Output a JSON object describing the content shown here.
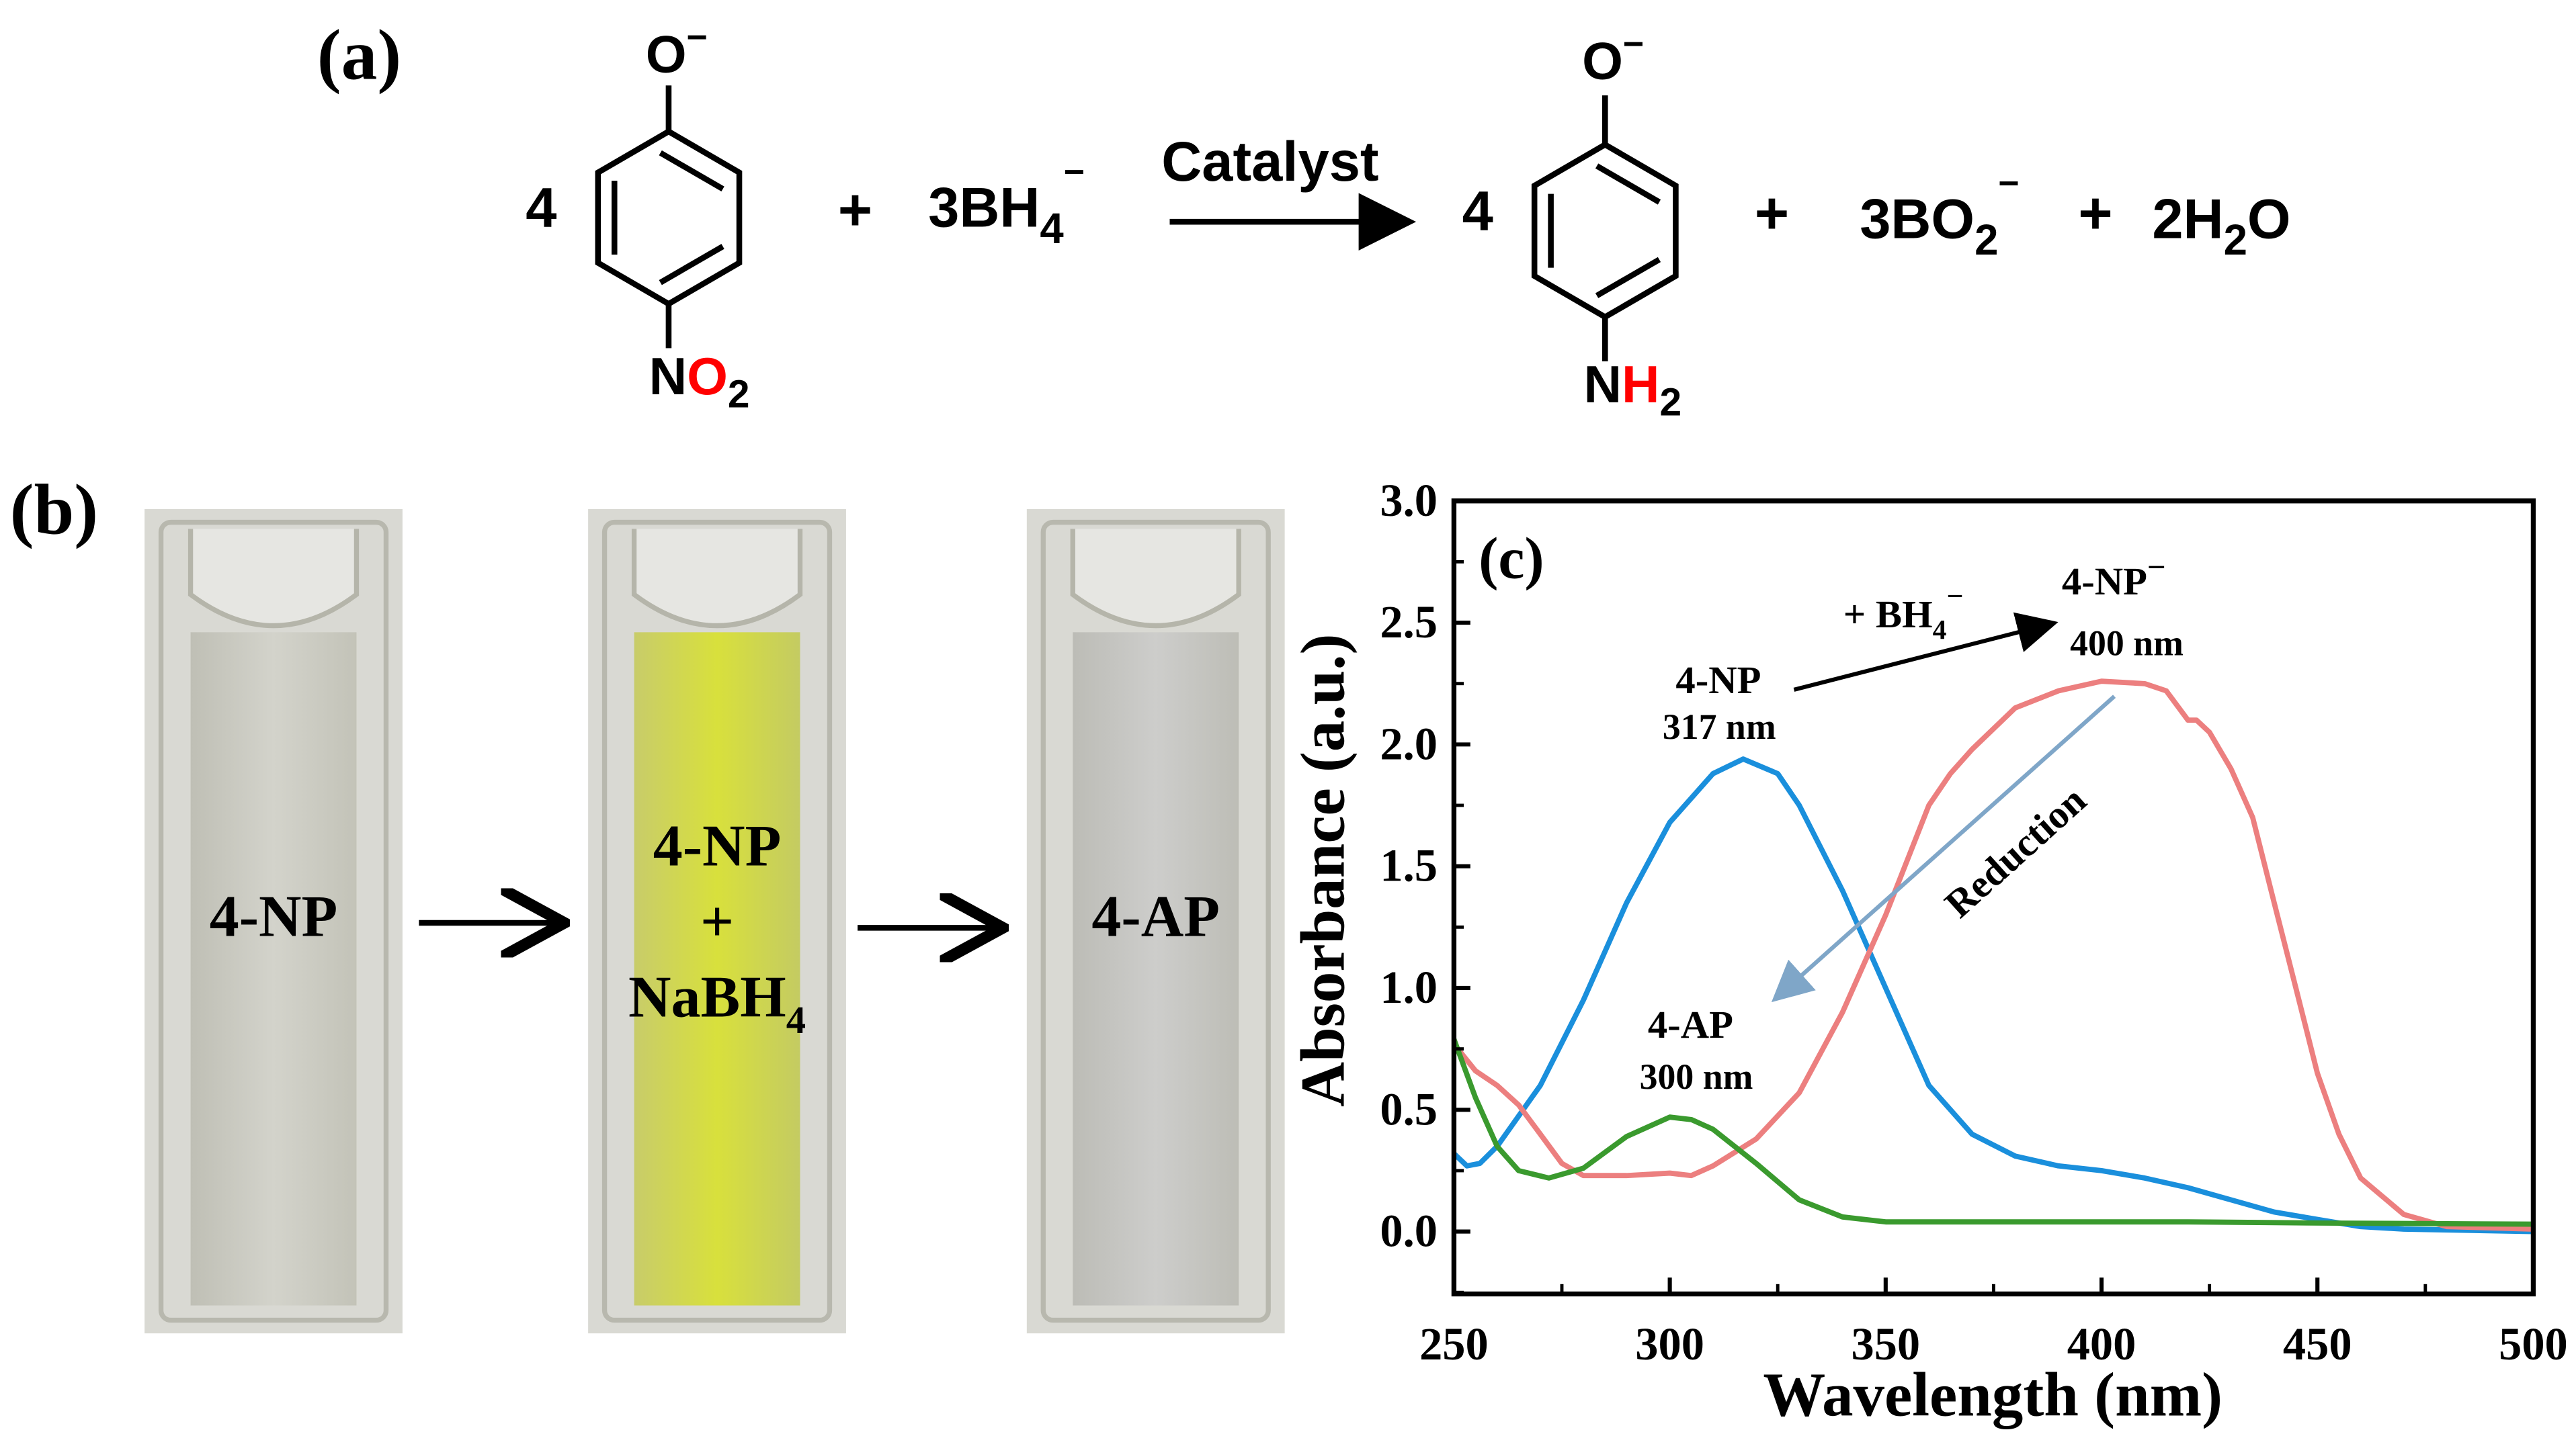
{
  "panel_a": {
    "label": "(a)",
    "coef_left": "4",
    "reactant_top": "O",
    "reactant_top_charge": "−",
    "reactant_bottom_n": "N",
    "reactant_bottom_o": "O",
    "reactant_bottom_sub": "2",
    "plus1": "+",
    "bh4_main": "3BH",
    "bh4_sub": "4",
    "bh4_charge": "−",
    "arrow_label": "Catalyst",
    "coef_right": "4",
    "product_top": "O",
    "product_top_charge": "−",
    "product_bottom_n": "N",
    "product_bottom_h": "H",
    "product_bottom_sub": "2",
    "plus2": "+",
    "bo2_main": "3BO",
    "bo2_sub": "2",
    "bo2_charge": "−",
    "plus3": "+",
    "h2o_a": "2H",
    "h2o_sub": "2",
    "h2o_b": "O",
    "highlight_color": "#ff0000"
  },
  "panel_b": {
    "label": "(b)",
    "cuvettes": [
      {
        "lines": [
          "4-NP"
        ],
        "liquid_color": "#c9c9bf"
      },
      {
        "lines": [
          "4-NP",
          "+",
          "NaBH"
        ],
        "sub": "4",
        "liquid_color": "#d4dc3a"
      },
      {
        "lines": [
          "4-AP"
        ],
        "liquid_color": "#c6c6c4"
      }
    ]
  },
  "chart_data": {
    "type": "line",
    "panel_label": "(c)",
    "xlabel": "Wavelength (nm)",
    "ylabel": "Absorbance (a.u.)",
    "xlim": [
      250,
      500
    ],
    "ylim": [
      -0.25,
      3.0
    ],
    "xticks": [
      250,
      300,
      350,
      400,
      450,
      500
    ],
    "xtick_labels": [
      "250",
      "300",
      "350",
      "400",
      "450",
      "500"
    ],
    "yticks": [
      0,
      0.5,
      1.0,
      1.5,
      2.0,
      2.5,
      3.0
    ],
    "ytick_labels": [
      "0.0",
      "0.5",
      "1.0",
      "1.5",
      "2.0",
      "2.5",
      "3.0"
    ],
    "grid": false,
    "series": [
      {
        "name": "4-NP",
        "color": "#1a8fdc",
        "x": [
          250,
          253,
          256,
          260,
          270,
          280,
          290,
          300,
          310,
          317,
          325,
          330,
          340,
          350,
          360,
          370,
          380,
          390,
          400,
          410,
          420,
          430,
          440,
          450,
          460,
          470,
          500
        ],
        "y": [
          0.32,
          0.27,
          0.28,
          0.35,
          0.6,
          0.95,
          1.35,
          1.68,
          1.88,
          1.94,
          1.88,
          1.75,
          1.4,
          1.0,
          0.6,
          0.4,
          0.31,
          0.27,
          0.25,
          0.22,
          0.18,
          0.13,
          0.08,
          0.05,
          0.02,
          0.01,
          0.0
        ]
      },
      {
        "name": "4-NP⁻",
        "color": "#ec7f7f",
        "x": [
          250,
          255,
          260,
          265,
          270,
          275,
          280,
          290,
          300,
          305,
          310,
          320,
          330,
          340,
          350,
          360,
          365,
          370,
          380,
          390,
          400,
          410,
          415,
          420,
          422,
          425,
          430,
          435,
          440,
          445,
          450,
          455,
          460,
          470,
          480,
          500
        ],
        "y": [
          0.77,
          0.66,
          0.6,
          0.52,
          0.4,
          0.28,
          0.23,
          0.23,
          0.24,
          0.23,
          0.27,
          0.38,
          0.57,
          0.9,
          1.3,
          1.75,
          1.88,
          1.98,
          2.15,
          2.22,
          2.26,
          2.25,
          2.22,
          2.1,
          2.1,
          2.05,
          1.9,
          1.7,
          1.35,
          1.0,
          0.65,
          0.4,
          0.22,
          0.07,
          0.02,
          0.01
        ]
      },
      {
        "name": "4-AP",
        "color": "#3a9a2e",
        "x": [
          250,
          255,
          260,
          265,
          272,
          280,
          290,
          300,
          305,
          310,
          320,
          330,
          340,
          350,
          400,
          420,
          450,
          500
        ],
        "y": [
          0.79,
          0.55,
          0.35,
          0.25,
          0.22,
          0.26,
          0.39,
          0.47,
          0.46,
          0.42,
          0.28,
          0.13,
          0.06,
          0.04,
          0.04,
          0.04,
          0.035,
          0.03
        ]
      }
    ],
    "annotations": {
      "np_name": "4-NP",
      "np_peak": "317 nm",
      "npi_name": "4-NP",
      "npi_charge": "−",
      "npi_peak": "400 nm",
      "bh4_plus": "+  BH",
      "bh4_sub": "4",
      "bh4_charge": "−",
      "ap_name": "4-AP",
      "ap_peak": "300 nm",
      "reduction": "Reduction",
      "reduction_arrow_color": "#7fa6c8"
    }
  }
}
